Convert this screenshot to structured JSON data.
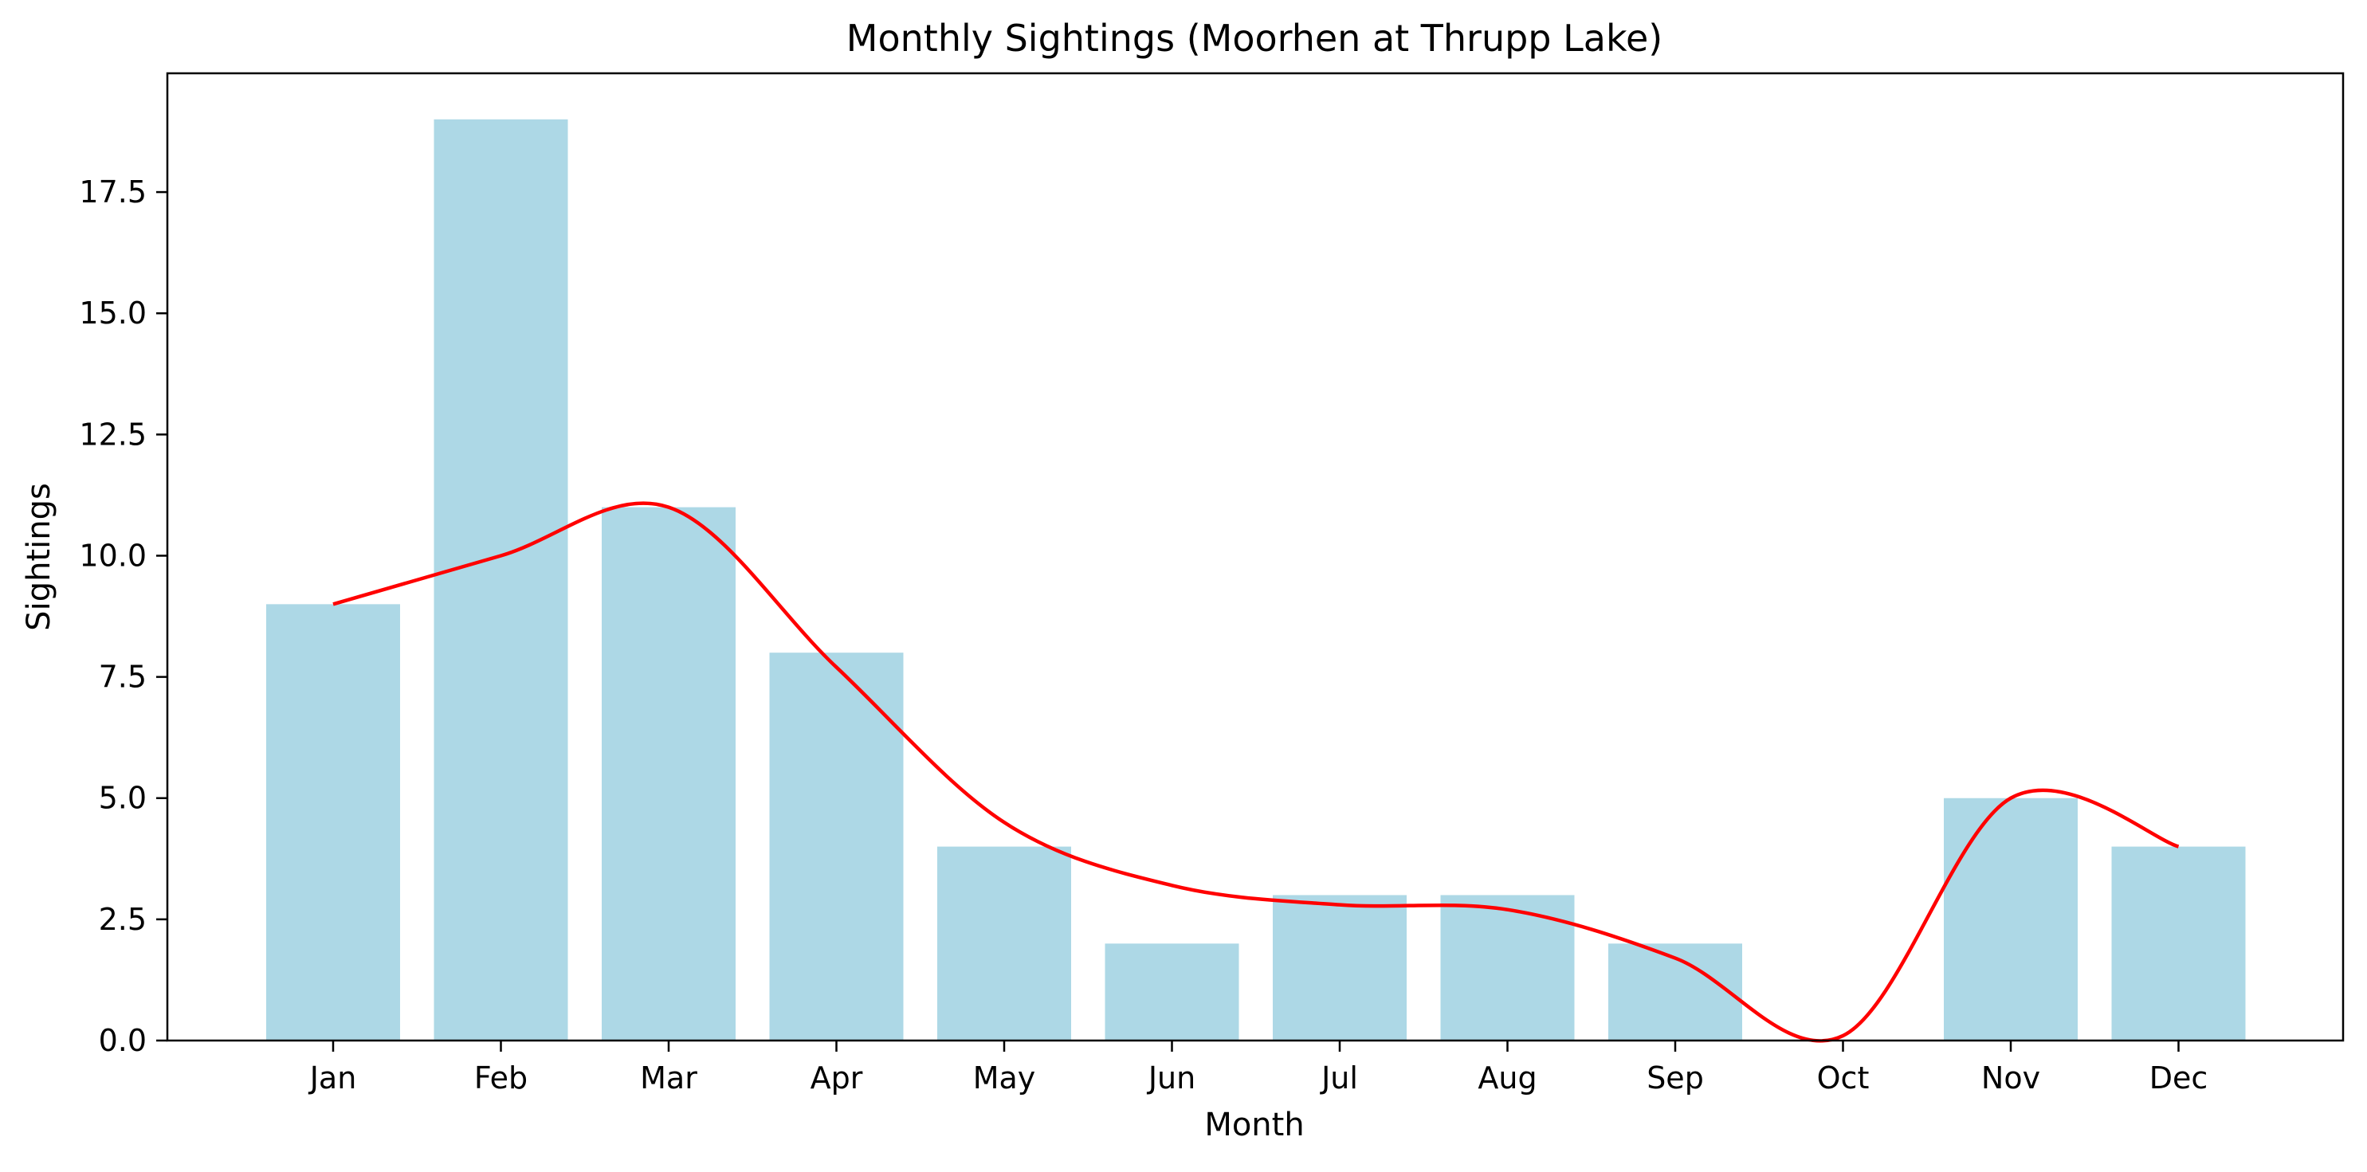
{
  "chart_data": {
    "type": "bar",
    "title": "Monthly Sightings (Moorhen at Thrupp Lake)",
    "xlabel": "Month",
    "ylabel": "Sightings",
    "categories": [
      "Jan",
      "Feb",
      "Mar",
      "Apr",
      "May",
      "Jun",
      "Jul",
      "Aug",
      "Sep",
      "Oct",
      "Nov",
      "Dec"
    ],
    "values": [
      9,
      19,
      11,
      8,
      4,
      2,
      3,
      3,
      2,
      0,
      5,
      4
    ],
    "smooth_line": [
      9,
      10,
      11,
      7.7,
      4.5,
      3.2,
      2.8,
      2.7,
      1.7,
      0.1,
      5,
      4
    ],
    "ylim": [
      0,
      19.95
    ],
    "yticks": [
      "0.0",
      "2.5",
      "5.0",
      "7.5",
      "10.0",
      "12.5",
      "15.0",
      "17.5"
    ],
    "bar_color": "#add8e6",
    "line_color": "#ff0000",
    "grid": false,
    "legend": "none"
  }
}
